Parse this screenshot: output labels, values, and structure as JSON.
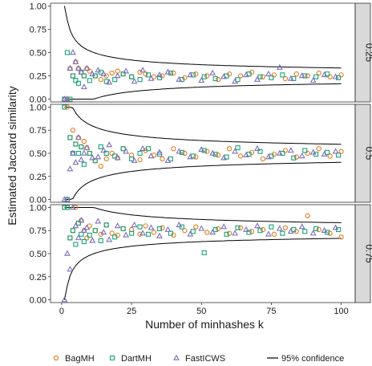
{
  "chart_data": {
    "type": "scatter",
    "xlabel": "Number of minhashes k",
    "ylabel": "Estimated Jaccard similarity",
    "xlim": [
      -4,
      105
    ],
    "ylim": [
      -0.03,
      1.03
    ],
    "x_ticks": [
      0,
      25,
      50,
      75,
      100
    ],
    "y_ticks": [
      0.0,
      0.25,
      0.5,
      0.75,
      1.0
    ],
    "y_tick_labels": [
      "0.00",
      "0.25",
      "0.50",
      "0.75",
      "1.00"
    ],
    "grid": false,
    "legend_position": "bottom",
    "facet_position": "right",
    "panels": [
      {
        "facet_label": "0.25",
        "true_value": 0.25,
        "series": [
          {
            "name": "BagMH",
            "marker": "circle",
            "color": "#e07b1a",
            "x": [
              1,
              2,
              3,
              4,
              5,
              6,
              7,
              8,
              9,
              10,
              12,
              14,
              16,
              18,
              20,
              22,
              25,
              28,
              30,
              33,
              36,
              40,
              44,
              48,
              52,
              56,
              60,
              64,
              68,
              72,
              76,
              80,
              84,
              88,
              92,
              96,
              100
            ],
            "y": [
              0.0,
              0.0,
              0.33,
              0.25,
              0.4,
              0.33,
              0.29,
              0.25,
              0.33,
              0.3,
              0.25,
              0.21,
              0.25,
              0.28,
              0.3,
              0.27,
              0.24,
              0.29,
              0.27,
              0.24,
              0.25,
              0.28,
              0.23,
              0.27,
              0.25,
              0.21,
              0.27,
              0.25,
              0.29,
              0.24,
              0.26,
              0.22,
              0.27,
              0.25,
              0.28,
              0.24,
              0.26
            ]
          },
          {
            "name": "DartMH",
            "marker": "square",
            "color": "#1aa37a",
            "x": [
              1,
              2,
              3,
              4,
              5,
              6,
              7,
              8,
              10,
              12,
              14,
              16,
              19,
              22,
              25,
              28,
              31,
              35,
              39,
              43,
              47,
              51,
              55,
              59,
              63,
              67,
              71,
              75,
              79,
              83,
              87,
              91,
              95,
              99
            ],
            "y": [
              0.0,
              0.5,
              0.0,
              0.25,
              0.2,
              0.17,
              0.29,
              0.25,
              0.2,
              0.25,
              0.29,
              0.19,
              0.21,
              0.27,
              0.24,
              0.21,
              0.26,
              0.23,
              0.28,
              0.21,
              0.26,
              0.24,
              0.22,
              0.25,
              0.21,
              0.27,
              0.24,
              0.23,
              0.26,
              0.22,
              0.25,
              0.24,
              0.27,
              0.23
            ]
          },
          {
            "name": "FastICWS",
            "marker": "triangle",
            "color": "#7b6fb8",
            "x": [
              1,
              2,
              3,
              4,
              5,
              6,
              7,
              8,
              9,
              11,
              13,
              15,
              17,
              20,
              23,
              26,
              29,
              32,
              35,
              38,
              42,
              46,
              50,
              54,
              58,
              62,
              66,
              70,
              74,
              78,
              82,
              86,
              90,
              94,
              98
            ],
            "y": [
              0.0,
              0.0,
              0.33,
              0.5,
              0.4,
              0.33,
              0.29,
              0.13,
              0.33,
              0.27,
              0.31,
              0.27,
              0.18,
              0.25,
              0.3,
              0.19,
              0.31,
              0.22,
              0.26,
              0.29,
              0.21,
              0.26,
              0.2,
              0.28,
              0.24,
              0.19,
              0.26,
              0.21,
              0.27,
              0.34,
              0.22,
              0.25,
              0.2,
              0.26,
              0.24
            ]
          }
        ]
      },
      {
        "facet_label": "0.5",
        "true_value": 0.5,
        "series": [
          {
            "name": "BagMH",
            "marker": "circle",
            "color": "#e07b1a",
            "x": [
              1,
              2,
              3,
              4,
              5,
              6,
              7,
              8,
              9,
              10,
              12,
              14,
              16,
              18,
              20,
              22,
              25,
              28,
              30,
              33,
              36,
              40,
              44,
              48,
              52,
              56,
              60,
              64,
              68,
              72,
              76,
              80,
              84,
              88,
              92,
              96,
              100
            ],
            "y": [
              1.0,
              1.0,
              0.67,
              0.75,
              0.6,
              0.67,
              0.57,
              0.63,
              0.56,
              0.5,
              0.42,
              0.36,
              0.44,
              0.5,
              0.45,
              0.55,
              0.48,
              0.43,
              0.53,
              0.48,
              0.44,
              0.55,
              0.5,
              0.46,
              0.52,
              0.48,
              0.55,
              0.47,
              0.51,
              0.44,
              0.49,
              0.53,
              0.46,
              0.5,
              0.55,
              0.47,
              0.52
            ]
          },
          {
            "name": "DartMH",
            "marker": "square",
            "color": "#1aa37a",
            "x": [
              1,
              2,
              3,
              4,
              5,
              6,
              7,
              8,
              10,
              12,
              14,
              16,
              19,
              22,
              25,
              28,
              31,
              35,
              39,
              43,
              47,
              51,
              55,
              59,
              63,
              67,
              71,
              75,
              79,
              83,
              87,
              91,
              95,
              99
            ],
            "y": [
              1.0,
              0.0,
              0.67,
              0.5,
              0.6,
              0.5,
              0.57,
              0.38,
              0.5,
              0.42,
              0.57,
              0.5,
              0.47,
              0.55,
              0.44,
              0.5,
              0.55,
              0.49,
              0.44,
              0.51,
              0.47,
              0.53,
              0.49,
              0.46,
              0.56,
              0.49,
              0.52,
              0.47,
              0.5,
              0.45,
              0.53,
              0.49,
              0.51,
              0.48
            ]
          },
          {
            "name": "FastICWS",
            "marker": "triangle",
            "color": "#7b6fb8",
            "x": [
              1,
              2,
              3,
              4,
              5,
              6,
              7,
              8,
              9,
              11,
              13,
              15,
              17,
              20,
              23,
              26,
              29,
              32,
              35,
              38,
              42,
              46,
              50,
              54,
              58,
              62,
              66,
              70,
              74,
              78,
              82,
              86,
              90,
              94,
              98
            ],
            "y": [
              0.0,
              0.0,
              0.33,
              0.5,
              0.4,
              0.67,
              0.43,
              0.5,
              0.56,
              0.45,
              0.46,
              0.53,
              0.59,
              0.45,
              0.52,
              0.42,
              0.55,
              0.47,
              0.51,
              0.42,
              0.52,
              0.46,
              0.54,
              0.5,
              0.45,
              0.52,
              0.48,
              0.55,
              0.46,
              0.5,
              0.53,
              0.47,
              0.51,
              0.49,
              0.52
            ]
          }
        ]
      },
      {
        "facet_label": "0.75",
        "true_value": 0.75,
        "series": [
          {
            "name": "BagMH",
            "marker": "circle",
            "color": "#e07b1a",
            "x": [
              1,
              2,
              3,
              4,
              5,
              6,
              7,
              8,
              9,
              10,
              12,
              14,
              16,
              18,
              20,
              22,
              25,
              28,
              30,
              33,
              36,
              40,
              44,
              48,
              52,
              56,
              60,
              64,
              68,
              72,
              76,
              80,
              84,
              88,
              92,
              96,
              100
            ],
            "y": [
              1.0,
              1.0,
              0.67,
              0.75,
              1.0,
              0.83,
              0.86,
              0.75,
              0.67,
              0.8,
              0.75,
              0.71,
              0.81,
              0.72,
              0.7,
              0.77,
              0.76,
              0.71,
              0.8,
              0.73,
              0.78,
              0.7,
              0.75,
              0.79,
              0.73,
              0.77,
              0.72,
              0.78,
              0.74,
              0.76,
              0.71,
              0.78,
              0.74,
              0.91,
              0.76,
              0.72,
              0.68
            ]
          },
          {
            "name": "DartMH",
            "marker": "square",
            "color": "#1aa37a",
            "x": [
              1,
              2,
              3,
              4,
              5,
              6,
              7,
              8,
              10,
              12,
              14,
              16,
              19,
              22,
              25,
              28,
              31,
              35,
              39,
              43,
              47,
              51,
              55,
              59,
              63,
              67,
              71,
              75,
              79,
              83,
              87,
              91,
              95,
              99
            ],
            "y": [
              1.0,
              1.0,
              0.67,
              0.75,
              0.6,
              0.83,
              0.71,
              0.63,
              0.7,
              0.75,
              0.64,
              0.81,
              0.68,
              0.77,
              0.72,
              0.79,
              0.71,
              0.77,
              0.72,
              0.79,
              0.74,
              0.51,
              0.76,
              0.71,
              0.78,
              0.73,
              0.75,
              0.79,
              0.72,
              0.76,
              0.74,
              0.77,
              0.73,
              0.76
            ]
          },
          {
            "name": "FastICWS",
            "marker": "triangle",
            "color": "#7b6fb8",
            "x": [
              1,
              2,
              3,
              4,
              5,
              6,
              7,
              8,
              9,
              11,
              13,
              15,
              17,
              20,
              23,
              26,
              29,
              32,
              35,
              38,
              42,
              46,
              50,
              54,
              58,
              62,
              66,
              70,
              74,
              78,
              82,
              86,
              90,
              94,
              98
            ],
            "y": [
              0.0,
              0.5,
              0.33,
              1.0,
              0.8,
              0.67,
              0.86,
              0.75,
              0.78,
              0.64,
              0.85,
              0.73,
              0.65,
              0.8,
              0.7,
              0.81,
              0.72,
              0.78,
              0.69,
              0.76,
              0.81,
              0.71,
              0.77,
              0.73,
              0.79,
              0.72,
              0.76,
              0.8,
              0.71,
              0.77,
              0.74,
              0.79,
              0.72,
              0.75,
              0.78
            ]
          }
        ]
      }
    ],
    "legend": [
      {
        "label": "BagMH",
        "marker": "circle",
        "color": "#e07b1a"
      },
      {
        "label": "DartMH",
        "marker": "square",
        "color": "#1aa37a"
      },
      {
        "label": "FastICWS",
        "marker": "triangle",
        "color": "#7b6fb8"
      },
      {
        "label": "95% confidence",
        "marker": "line",
        "color": "#000000"
      }
    ]
  }
}
